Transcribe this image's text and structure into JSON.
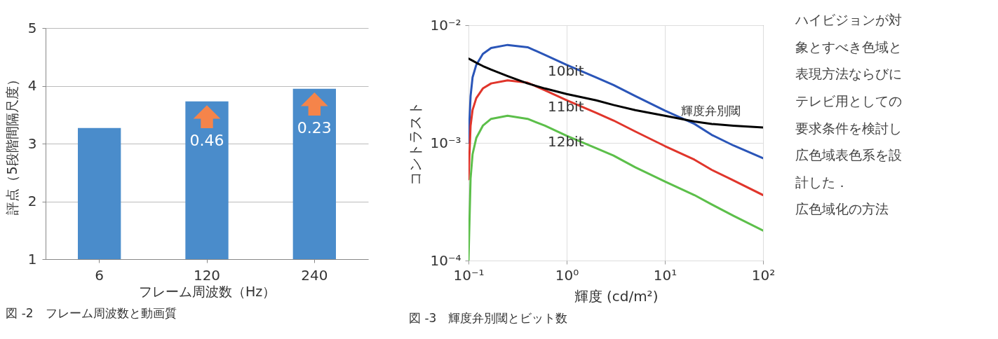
{
  "chart_data": [
    {
      "type": "bar",
      "xlabel": "フレーム周波数（Hz）",
      "ylabel": "評点（5段階間隔尺度）",
      "categories": [
        "6",
        "120",
        "240"
      ],
      "values": [
        3.27,
        3.73,
        3.95
      ],
      "color": "#4a8ccb",
      "ylim": [
        1,
        5
      ],
      "yticks": [
        1,
        2,
        3,
        4,
        5
      ],
      "grid": "y",
      "annotations": [
        "0.46",
        "0.23",
        "図 -2　フレーム周波数と動画質"
      ]
    },
    {
      "type": "line",
      "xlabel": "輝度 (cd/m²)",
      "ylabel": "コントラスト",
      "log": "xy",
      "grid": true,
      "legend": false,
      "x": [
        0.1,
        0.105,
        0.11,
        0.12,
        0.14,
        0.17,
        0.25,
        0.4,
        0.6,
        1,
        2,
        3,
        5,
        10,
        20,
        30,
        50,
        100
      ],
      "xlim": [
        0.1,
        100
      ],
      "xticks": [
        {
          "value": 0.1,
          "label": "10⁻¹"
        },
        {
          "value": 1,
          "label": "10⁰"
        },
        {
          "value": 10,
          "label": "10¹"
        },
        {
          "value": 100,
          "label": "10²"
        }
      ],
      "ylim": [
        0.0001,
        0.01
      ],
      "yticks": [
        {
          "value": 0.0001,
          "label": "10⁻⁴"
        },
        {
          "value": 0.001,
          "label": "10⁻³"
        },
        {
          "value": 0.01,
          "label": "10⁻²"
        }
      ],
      "series": [
        {
          "name": "10bit",
          "color": "#2a55b8",
          "values": [
            0.001,
            0.0025,
            0.0036,
            0.0046,
            0.0057,
            0.0064,
            0.0068,
            0.0065,
            0.0056,
            0.0046,
            0.0036,
            0.0031,
            0.0025,
            0.00188,
            0.00145,
            0.00117,
            0.00095,
            0.00074
          ]
        },
        {
          "name": "11bit",
          "color": "#e0352b",
          "values": [
            0.00049,
            0.0014,
            0.0019,
            0.0024,
            0.0029,
            0.0032,
            0.0034,
            0.00325,
            0.0028,
            0.0023,
            0.0018,
            0.00155,
            0.00125,
            0.00094,
            0.00072,
            0.00059,
            0.00048,
            0.00036
          ]
        },
        {
          "name": "12bit",
          "color": "#5cbf4a",
          "values": [
            0.0001,
            0.0005,
            0.0008,
            0.0011,
            0.0014,
            0.0016,
            0.0017,
            0.0016,
            0.0014,
            0.00115,
            0.0009,
            0.00078,
            0.00062,
            0.00047,
            0.00036,
            0.0003,
            0.00024,
            0.00018
          ]
        },
        {
          "name": "輝度弁別閾",
          "color": "#000000",
          "values": [
            0.0052,
            0.0051,
            0.005,
            0.0048,
            0.0045,
            0.0042,
            0.0037,
            0.0032,
            0.0029,
            0.0026,
            0.0023,
            0.0021,
            0.0019,
            0.0017,
            0.00152,
            0.00145,
            0.0014,
            0.00135
          ]
        }
      ],
      "annotations": [
        "図 -3　輝度弁別閾とビット数"
      ]
    },
    {
      "type": "other",
      "annotations": [
        "ハイビジョンが対",
        "象とすべき色域と",
        "表現方法ならびに",
        "テレビ用としての",
        "要求条件を検討し",
        "広色域表色系を設",
        "計した．",
        "　広色域化の方法"
      ]
    }
  ]
}
